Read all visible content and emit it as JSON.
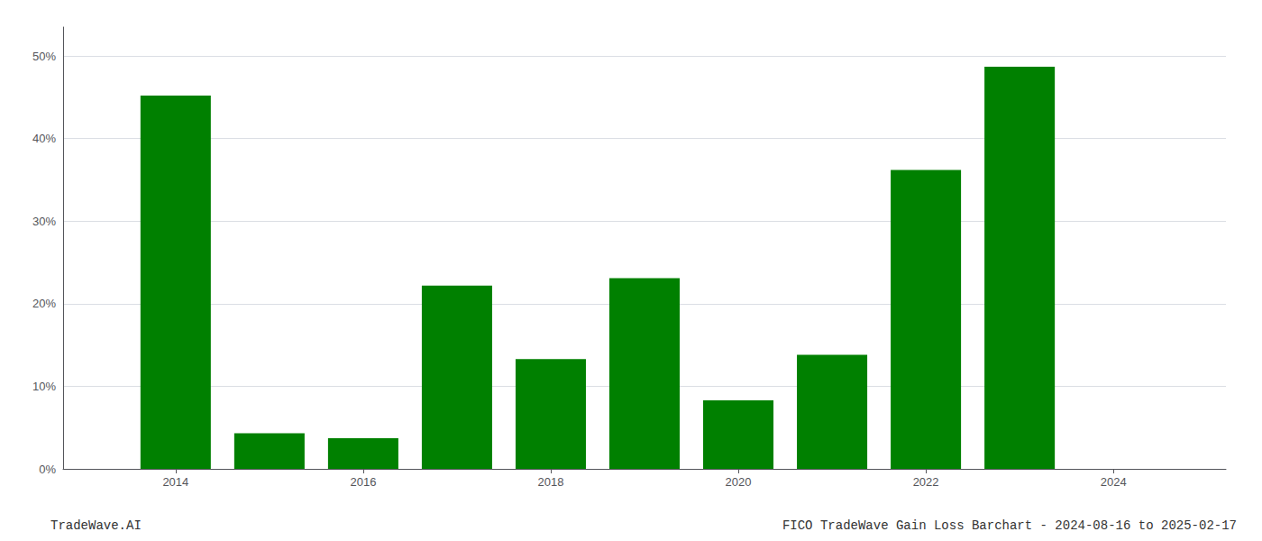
{
  "chart_data": {
    "type": "bar",
    "x": [
      2014,
      2015,
      2016,
      2017,
      2018,
      2019,
      2020,
      2021,
      2022,
      2023
    ],
    "values": [
      0.452,
      0.043,
      0.037,
      0.222,
      0.133,
      0.231,
      0.083,
      0.138,
      0.362,
      0.487
    ],
    "color": "#008000",
    "xlim": [
      2012.8,
      2025.2
    ],
    "xticks": [
      2014,
      2016,
      2018,
      2020,
      2022,
      2024
    ],
    "ylim": [
      0,
      0.535
    ],
    "yticks": [
      {
        "value": 0.0,
        "label": "0%"
      },
      {
        "value": 0.1,
        "label": "10%"
      },
      {
        "value": 0.2,
        "label": "20%"
      },
      {
        "value": 0.3,
        "label": "30%"
      },
      {
        "value": 0.4,
        "label": "40%"
      },
      {
        "value": 0.5,
        "label": "50%"
      }
    ],
    "grid": true,
    "annotations": [
      "TradeWave.AI",
      "FICO TradeWave Gain Loss Barchart - 2024-08-16 to 2025-02-17"
    ]
  }
}
